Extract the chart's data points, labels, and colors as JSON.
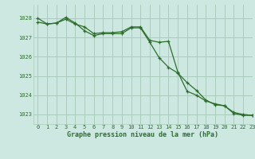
{
  "title": "Graphe pression niveau de la mer (hPa)",
  "background_color": "#cce8e0",
  "grid_color": "#aaccbb",
  "line_color": "#2d6e2d",
  "xlim": [
    -0.5,
    23
  ],
  "ylim": [
    1022.5,
    1028.7
  ],
  "yticks": [
    1023,
    1024,
    1025,
    1026,
    1027,
    1028
  ],
  "xticks": [
    0,
    1,
    2,
    3,
    4,
    5,
    6,
    7,
    8,
    9,
    10,
    11,
    12,
    13,
    14,
    15,
    16,
    17,
    18,
    19,
    20,
    21,
    22,
    23
  ],
  "series1_x": [
    0,
    1,
    2,
    3,
    4,
    5,
    6,
    7,
    8,
    9,
    10,
    11,
    12,
    13,
    14,
    15,
    16,
    17,
    18,
    19,
    20,
    21,
    22,
    23
  ],
  "series1_y": [
    1027.8,
    1027.7,
    1027.75,
    1027.95,
    1027.7,
    1027.55,
    1027.2,
    1027.25,
    1027.25,
    1027.3,
    1027.55,
    1027.55,
    1026.85,
    1026.75,
    1026.8,
    1025.2,
    1024.2,
    1024.0,
    1023.7,
    1023.55,
    1023.45,
    1023.1,
    1023.0,
    1022.95
  ],
  "series2_x": [
    0,
    1,
    2,
    3,
    4,
    5,
    6,
    7,
    8,
    9,
    10,
    11,
    12,
    13,
    14,
    15,
    16,
    17,
    18,
    19,
    20,
    21,
    22,
    23
  ],
  "series2_y": [
    1028.0,
    1027.7,
    1027.75,
    1028.05,
    1027.75,
    1027.35,
    1027.1,
    1027.2,
    1027.2,
    1027.2,
    1027.5,
    1027.5,
    1026.75,
    1025.95,
    1025.45,
    1025.15,
    1024.65,
    1024.25,
    1023.75,
    1023.5,
    1023.45,
    1023.05,
    1022.95,
    1022.95
  ],
  "title_fontsize": 6.0,
  "tick_fontsize": 5.0
}
